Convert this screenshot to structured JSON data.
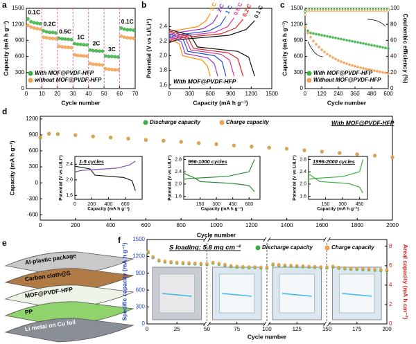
{
  "chart_data": [
    {
      "type": "scatter",
      "label": "a",
      "xlabel": "Cycle number",
      "ylabel": "Capacity (mA h g⁻¹)",
      "xlim": [
        0,
        70
      ],
      "xticks": [
        0,
        10,
        20,
        30,
        40,
        50,
        60,
        70
      ],
      "ylim": [
        0,
        1500
      ],
      "yticks": [
        0,
        300,
        600,
        900,
        1200,
        1500
      ],
      "rate_labels": [
        "0.1C",
        "0.2C",
        "0.5C",
        "1C",
        "2C",
        "3C",
        "0.1C"
      ],
      "x": [
        1,
        3,
        5,
        7,
        9,
        11,
        13,
        15,
        17,
        19,
        21,
        23,
        25,
        27,
        29,
        31,
        33,
        35,
        37,
        39,
        41,
        43,
        45,
        47,
        49,
        51,
        53,
        55,
        57,
        59,
        61,
        63,
        65,
        67,
        69
      ],
      "series": [
        {
          "name": "With MOF@PVDF-HFP",
          "color": "#3cb043",
          "values": [
            1300,
            1250,
            1230,
            1220,
            1210,
            1080,
            1060,
            1050,
            1050,
            1040,
            940,
            930,
            925,
            920,
            915,
            840,
            830,
            825,
            820,
            815,
            720,
            710,
            705,
            700,
            700,
            610,
            600,
            600,
            595,
            590,
            1130,
            1110,
            1100,
            1100,
            1090
          ]
        },
        {
          "name": "without MOF@PVDF-HFP",
          "color": "#f0a050",
          "values": [
            1180,
            1150,
            1130,
            1120,
            1110,
            960,
            950,
            940,
            935,
            930,
            790,
            780,
            775,
            770,
            765,
            630,
            620,
            615,
            610,
            605,
            470,
            455,
            450,
            445,
            440,
            370,
            360,
            355,
            350,
            350,
            980,
            960,
            950,
            945,
            940
          ]
        }
      ]
    },
    {
      "type": "line",
      "label": "b",
      "xlabel": "Capacity (mA h g⁻¹)",
      "ylabel": "Potential (V vs Li/Li⁺)",
      "annotation": "With MOF@PVDF-HFP",
      "xlim": [
        0,
        1500
      ],
      "xticks": [
        0,
        300,
        600,
        900,
        1200,
        1500
      ],
      "ylim": [
        1.55,
        2.65
      ],
      "yticks": [
        1.6,
        1.8,
        {
          "value": 2,
          "label": "2.0"
        },
        2.2,
        2.4
      ],
      "series": [
        {
          "name": "3 C",
          "color": "#ff8c00",
          "x": [
            0,
            150,
            198,
            480,
            558,
            600
          ],
          "values": [
            2.24,
            2.16,
            2.0,
            1.94,
            1.86,
            1.72
          ],
          "charge_x": [
            0,
            60,
            420,
            540,
            600
          ],
          "charge_values": [
            2.3,
            2.34,
            2.4,
            2.48,
            2.58
          ]
        },
        {
          "name": "2 C",
          "color": "#9932cc",
          "x": [
            0,
            178,
            234,
            568,
            660,
            710
          ],
          "values": [
            2.27,
            2.19,
            2.03,
            1.97,
            1.89,
            1.72
          ],
          "charge_x": [
            0,
            71,
            497,
            639,
            710
          ],
          "charge_values": [
            2.27,
            2.31,
            2.37,
            2.45,
            2.56
          ]
        },
        {
          "name": "1 C",
          "color": "#1f4fd8",
          "x": [
            0,
            208,
            274,
            664,
            772,
            830
          ],
          "values": [
            2.3,
            2.22,
            2.06,
            2.0,
            1.92,
            1.72
          ],
          "charge_x": [
            0,
            83,
            581,
            747,
            830
          ],
          "charge_values": [
            2.24,
            2.28,
            2.34,
            2.42,
            2.54
          ]
        },
        {
          "name": "0.5 C",
          "color": "#e0309a",
          "x": [
            0,
            238,
            314,
            760,
            884,
            950
          ],
          "values": [
            2.32,
            2.24,
            2.08,
            2.02,
            1.94,
            1.72
          ],
          "charge_x": [
            0,
            95,
            665,
            855,
            950
          ],
          "charge_values": [
            2.22,
            2.26,
            2.32,
            2.4,
            2.52
          ]
        },
        {
          "name": "0.2 C",
          "color": "#e02020",
          "x": [
            0,
            270,
            356,
            864,
            1004,
            1080
          ],
          "values": [
            2.34,
            2.26,
            2.1,
            2.04,
            1.96,
            1.72
          ],
          "charge_x": [
            0,
            108,
            756,
            972,
            1080
          ],
          "charge_values": [
            2.2,
            2.24,
            2.3,
            2.38,
            2.5
          ]
        },
        {
          "name": "0.1 C",
          "color": "#111111",
          "x": [
            0,
            313,
            413,
            1000,
            1163,
            1250
          ],
          "values": [
            2.36,
            2.28,
            2.12,
            2.06,
            1.98,
            1.72
          ],
          "charge_x": [
            0,
            125,
            875,
            1125,
            1250
          ],
          "charge_values": [
            2.18,
            2.22,
            2.28,
            2.36,
            2.48
          ]
        }
      ]
    },
    {
      "type": "scatter",
      "label": "c",
      "xlabel": "Cycle number",
      "ylabel": "Capacity (mA h g⁻¹)",
      "y2label": "Coulombic efficiency (%)",
      "xlim": [
        0,
        600
      ],
      "xticks": [
        0,
        120,
        240,
        360,
        480,
        600
      ],
      "ylim": [
        0,
        1500
      ],
      "yticks": [
        0,
        300,
        600,
        900,
        1200,
        1500
      ],
      "y2lim": [
        0,
        100
      ],
      "y2ticks": [
        0,
        20,
        40,
        60,
        80,
        100
      ],
      "x": [
        1,
        20,
        40,
        60,
        80,
        100,
        120,
        140,
        160,
        180,
        200,
        220,
        240,
        260,
        280,
        300,
        320,
        340,
        360,
        380,
        400,
        420,
        440,
        460,
        480,
        500,
        520,
        540,
        560,
        580,
        600
      ],
      "series": [
        {
          "name": "With MOF@PVDF-HFP",
          "color": "#3cb043",
          "values": [
            1150,
            1080,
            1040,
            1030,
            1019,
            1009,
            998,
            988,
            978,
            967,
            957,
            947,
            936,
            926,
            916,
            905,
            895,
            884,
            874,
            864,
            853,
            843,
            833,
            822,
            812,
            802,
            791,
            781,
            771,
            760,
            750
          ],
          "ce_values": [
            96,
            99,
            99,
            99,
            99,
            99,
            99,
            99,
            99,
            99,
            99,
            99,
            99,
            99,
            99,
            99,
            99,
            99,
            99,
            99,
            99,
            99,
            99,
            99,
            99,
            99,
            99,
            99,
            99,
            99,
            99
          ]
        },
        {
          "name": "Without MOF@PVDF-HFP",
          "color": "#f0a050",
          "values": [
            1150,
            1040,
            960,
            890,
            830,
            775,
            725,
            685,
            645,
            610,
            580,
            552,
            527,
            505,
            485,
            466,
            449,
            433,
            418,
            404,
            391,
            378,
            366,
            355,
            344,
            334,
            324,
            314,
            304,
            294,
            284
          ],
          "ce_values": [
            92,
            97,
            97,
            97,
            97,
            97,
            97,
            97,
            97,
            97,
            97,
            97,
            97,
            97,
            97,
            97,
            97,
            97,
            97,
            97,
            97,
            97,
            97,
            97,
            97,
            97,
            97,
            97,
            97,
            97,
            97
          ]
        }
      ]
    },
    {
      "type": "scatter",
      "label": "d",
      "xlabel": "Cycle number",
      "ylabel": "Capacity (mA h g⁻¹)",
      "annotation": "With MOF@PVDF-HFP",
      "xlim": [
        0,
        2000
      ],
      "xticks": [
        0,
        200,
        400,
        600,
        800,
        1000,
        1200,
        1400,
        1600,
        1800,
        2000
      ],
      "ylim": [
        -700,
        1250
      ],
      "yticks": [
        -600,
        -300,
        0,
        300,
        600,
        900,
        1200
      ],
      "x": [
        1,
        50,
        100,
        200,
        300,
        400,
        500,
        600,
        700,
        800,
        900,
        1000,
        1100,
        1200,
        1300,
        1400,
        1500,
        1600,
        1700,
        1800,
        1900,
        2000
      ],
      "series": [
        {
          "name": "Discharge capacity",
          "color": "#3cb043",
          "values": [
            850,
            920,
            915,
            895,
            870,
            850,
            830,
            805,
            790,
            770,
            745,
            725,
            700,
            680,
            660,
            640,
            610,
            585,
            560,
            535,
            510,
            480
          ]
        },
        {
          "name": "Charge capacity",
          "color": "#f0a050",
          "values": [
            860,
            925,
            918,
            898,
            873,
            853,
            833,
            808,
            793,
            773,
            748,
            728,
            703,
            683,
            663,
            643,
            613,
            588,
            563,
            538,
            513,
            483
          ]
        }
      ],
      "insets": [
        {
          "title": "1-5 cycles",
          "xlabel": "Capacity (mA h g⁻¹)",
          "ylabel": "Potential (V vs Li/Li⁺)",
          "xlim": [
            0,
            800
          ],
          "xticks": [
            0,
            200,
            400,
            600
          ],
          "ylim": [
            1.5,
            2.6
          ],
          "yticks": [
            1.6,
            {
              "value": 2,
              "label": "2.0"
            },
            2.4
          ],
          "curves": [
            {
              "color": "#222222",
              "x": [
                0,
                180,
                240,
                580,
                680,
                720
              ],
              "values": [
                2.35,
                2.28,
                2.12,
                2.06,
                1.98,
                1.72
              ]
            },
            {
              "color": "#7b4fb0",
              "x": [
                0,
                70,
                500,
                650,
                720
              ],
              "values": [
                2.2,
                2.24,
                2.3,
                2.38,
                2.48
              ]
            }
          ]
        },
        {
          "title": "996-1000 cycles",
          "xlabel": "Capacity (mA h g⁻¹)",
          "ylabel": "Potential (V vs Li/Li⁺)",
          "xlim": [
            0,
            700
          ],
          "xticks": [
            150,
            300,
            450,
            600
          ],
          "ylim": [
            1.5,
            2.9
          ],
          "yticks": [
            1.6,
            {
              "value": 2,
              "label": "2.0"
            },
            2.4,
            2.8
          ],
          "curves": [
            {
              "color": "#2e8b3a",
              "x": [
                0,
                100,
                150,
                450,
                600,
                650
              ],
              "values": [
                2.35,
                2.2,
                2.08,
                2.02,
                1.95,
                1.75
              ]
            },
            {
              "color": "#2e8b3a",
              "x": [
                0,
                50,
                400,
                600,
                650
              ],
              "values": [
                2.15,
                2.18,
                2.25,
                2.4,
                2.8
              ]
            }
          ]
        },
        {
          "title": "1996-2000 cycles",
          "xlabel": "Capacity (mA h g⁻¹)",
          "ylabel": "Potential (V vs Li/Li⁺)",
          "xlim": [
            0,
            520
          ],
          "xticks": [
            150,
            300,
            450
          ],
          "ylim": [
            1.5,
            2.9
          ],
          "yticks": [
            1.6,
            {
              "value": 2,
              "label": "2.0"
            },
            2.4,
            2.8
          ],
          "curves": [
            {
              "color": "#3cb043",
              "x": [
                0,
                60,
                100,
                350,
                450,
                480
              ],
              "values": [
                2.33,
                2.18,
                2.08,
                2.02,
                1.9,
                1.7
              ]
            },
            {
              "color": "#3cb043",
              "x": [
                0,
                40,
                300,
                450,
                480
              ],
              "values": [
                2.15,
                2.18,
                2.24,
                2.4,
                2.8
              ]
            }
          ]
        }
      ]
    },
    {
      "type": "scatter",
      "label": "f",
      "xlabel": "Cycle number",
      "ylabel": "Specific capacity (mA h g⁻¹)",
      "y2label": "Areal capacity (mA h cm⁻²)",
      "annotation": "S loading: 5.8 mg cm⁻²",
      "xlim": [
        0,
        200
      ],
      "xticks": [
        0,
        25,
        50,
        75,
        100,
        125,
        150,
        175,
        200
      ],
      "axis_breaks": [
        50,
        100,
        150
      ],
      "ylim": [
        0,
        1500
      ],
      "yticks": [
        0,
        300,
        600,
        900,
        1200,
        1500
      ],
      "y2lim": [
        0,
        8.7
      ],
      "y2ticks": [
        0,
        2,
        4,
        6,
        8
      ],
      "x": [
        1,
        5,
        10,
        15,
        20,
        25,
        30,
        35,
        40,
        45,
        50,
        55,
        60,
        65,
        70,
        75,
        80,
        85,
        90,
        95,
        100,
        105,
        110,
        115,
        120,
        125,
        130,
        135,
        140,
        145,
        150,
        155,
        160,
        165,
        170,
        175,
        180,
        185,
        190,
        195,
        200
      ],
      "series": [
        {
          "name": "Discharge capacity",
          "color": "#3cb043",
          "values": [
            1270,
            1180,
            1120,
            1100,
            1090,
            1080,
            1075,
            1070,
            1065,
            1060,
            1055,
            1080,
            1060,
            1040,
            1020,
            1010,
            1005,
            1000,
            1000,
            995,
            990,
            1050,
            1040,
            1030,
            1025,
            1020,
            1015,
            1010,
            1005,
            1000,
            995,
            1010,
            990,
            980,
            975,
            970,
            965,
            960,
            955,
            950,
            945
          ]
        },
        {
          "name": "Charge capacity",
          "color": "#f0a050",
          "values": [
            1285,
            1195,
            1135,
            1115,
            1105,
            1095,
            1090,
            1085,
            1080,
            1075,
            1070,
            1095,
            1075,
            1055,
            1035,
            1025,
            1020,
            1015,
            1015,
            1010,
            1005,
            1065,
            1055,
            1045,
            1040,
            1035,
            1030,
            1025,
            1020,
            1015,
            1010,
            1025,
            1005,
            995,
            990,
            985,
            980,
            975,
            970,
            965,
            960
          ]
        }
      ]
    }
  ],
  "diagram": {
    "label": "e",
    "layers": [
      "Al-plastic package",
      "Carbon cloth@S",
      "MOF@PVDF-HFP",
      "PP",
      "Li metal on Cu foil"
    ]
  }
}
